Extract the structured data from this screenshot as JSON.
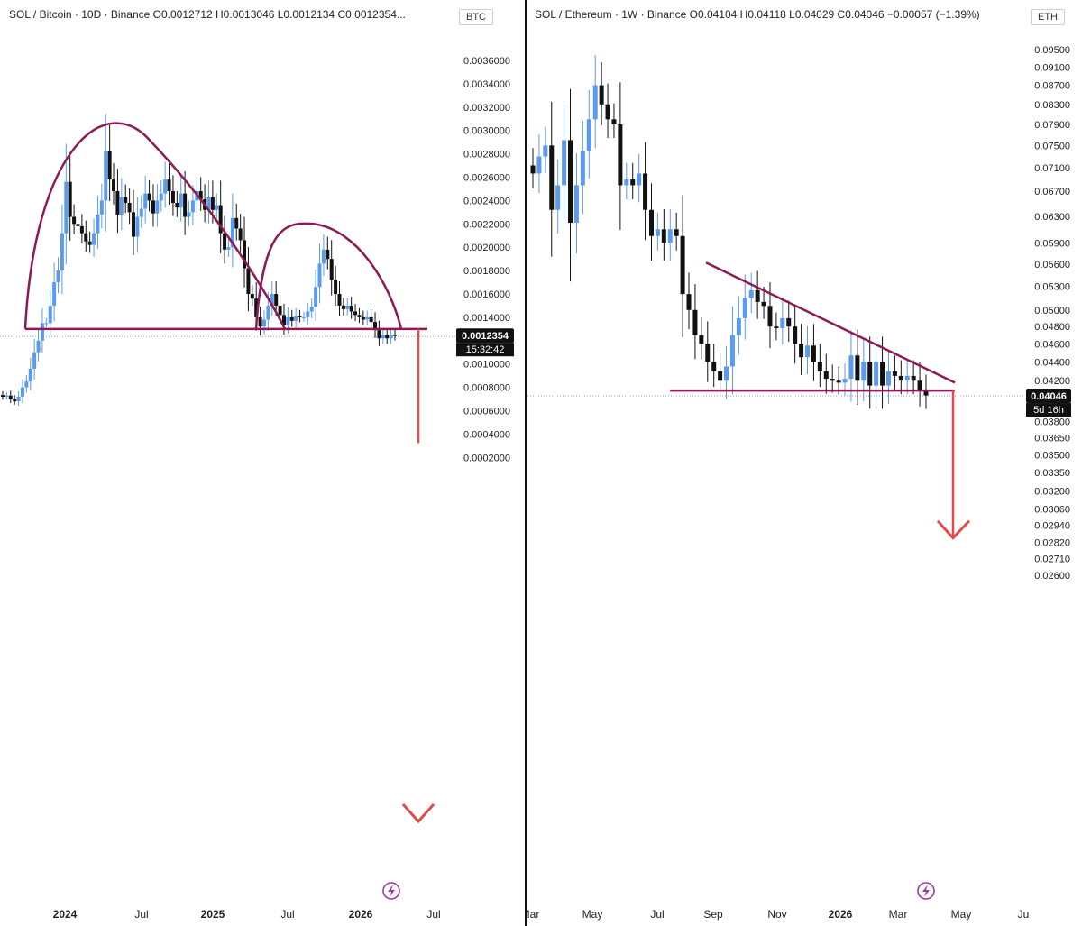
{
  "colors": {
    "up": "#5b9bef",
    "down": "#111111",
    "pattern": "#8e1a55",
    "projection_arrow": "#e44a4a",
    "axis_text": "#222222",
    "price_tag_bg": "#111111",
    "price_tag_text": "#ffffff"
  },
  "left_chart": {
    "header": "SOL / Bitcoin · 10D · Binance  O0.0012712  H0.0013046  L0.0012134  C0.0012354...",
    "currency": "BTC",
    "price_tag": "0.0012354",
    "countdown_tag": "15:32:42",
    "lightning_icon": "lightning-icon"
  },
  "right_chart": {
    "header": "SOL / Ethereum · 1W · Binance  O0.04104  H0.04118  L0.04029  C0.04046  −0.00057 (−1.39%)",
    "currency": "ETH",
    "price_tag": "0.04046",
    "countdown_tag": "5d 16h",
    "lightning_icon": "lightning-icon"
  },
  "chart_data": [
    {
      "type": "candlestick",
      "title": "SOL / Bitcoin · 10D · Binance",
      "ylabel": "BTC",
      "ylim": [
        0.0001,
        0.0038
      ],
      "y_ticks": [
        "0.0036000",
        "0.0034000",
        "0.0032000",
        "0.0030000",
        "0.0028000",
        "0.0026000",
        "0.0024000",
        "0.0022000",
        "0.0020000",
        "0.0018000",
        "0.0016000",
        "0.0014000",
        "0.0010000",
        "0.0008000",
        "0.0006000",
        "0.0004000",
        "0.0002000"
      ],
      "x_ticks": [
        "2024",
        "Jul",
        "2025",
        "Jul",
        "2026",
        "Jul"
      ],
      "annotations": [
        "double-top arcs",
        "neckline at 0.00130",
        "downward projection arrow to 0.00040"
      ],
      "series": [
        {
          "name": "SOL/BTC",
          "close": [
            0.00072,
            0.00073,
            0.0007,
            0.00068,
            0.00072,
            0.0008,
            0.00085,
            0.00096,
            0.0011,
            0.0012,
            0.00135,
            0.00135,
            0.0015,
            0.0017,
            0.0018,
            0.00212,
            0.00256,
            0.00226,
            0.0022,
            0.00218,
            0.00212,
            0.00205,
            0.00202,
            0.00212,
            0.00228,
            0.0024,
            0.00282,
            0.00258,
            0.00248,
            0.00228,
            0.00243,
            0.00238,
            0.0023,
            0.00209,
            0.00226,
            0.00233,
            0.00246,
            0.0024,
            0.00229,
            0.0024,
            0.00246,
            0.00258,
            0.00248,
            0.00238,
            0.00234,
            0.00246,
            0.00226,
            0.0023,
            0.0024,
            0.00248,
            0.00241,
            0.00232,
            0.00243,
            0.00232,
            0.00236,
            0.00212,
            0.00198,
            0.002,
            0.00225,
            0.00216,
            0.00206,
            0.00182,
            0.0016,
            0.00156,
            0.0014,
            0.00132,
            0.00138,
            0.0015,
            0.0016,
            0.0015,
            0.00142,
            0.00133,
            0.0014,
            0.00137,
            0.00141,
            0.0014,
            0.0014,
            0.00145,
            0.00149,
            0.00166,
            0.00186,
            0.00198,
            0.0019,
            0.00172,
            0.0016,
            0.0015,
            0.00147,
            0.0015,
            0.00145,
            0.00142,
            0.0014,
            0.00138,
            0.0014,
            0.00136,
            0.00129,
            0.00122,
            0.00125,
            0.00122,
            0.00125,
            0.00124
          ]
        }
      ]
    },
    {
      "type": "candlestick",
      "title": "SOL / Ethereum · 1W · Binance",
      "ylabel": "ETH",
      "ylim": [
        0.0255,
        0.099
      ],
      "y_scale": "log",
      "y_ticks": [
        "0.09500",
        "0.09100",
        "0.08700",
        "0.08300",
        "0.07900",
        "0.07500",
        "0.07100",
        "0.06700",
        "0.06300",
        "0.05900",
        "0.05600",
        "0.05300",
        "0.05000",
        "0.04800",
        "0.04600",
        "0.04400",
        "0.04200",
        "0.03800",
        "0.03650",
        "0.03500",
        "0.03350",
        "0.03200",
        "0.03060",
        "0.02940",
        "0.02820",
        "0.02710",
        "0.02600"
      ],
      "x_ticks": [
        "Mar",
        "May",
        "Jul",
        "Sep",
        "Nov",
        "2026",
        "Mar",
        "May",
        "Ju"
      ],
      "annotations": [
        "descending triangle upper trendline",
        "support line at 0.0410",
        "downward projection arrow to 0.0285"
      ],
      "series": [
        {
          "name": "SOL/ETH",
          "close": [
            0.07,
            0.073,
            0.075,
            0.064,
            0.068,
            0.076,
            0.062,
            0.068,
            0.074,
            0.08,
            0.087,
            0.083,
            0.08,
            0.079,
            0.068,
            0.069,
            0.068,
            0.07,
            0.064,
            0.06,
            0.061,
            0.059,
            0.061,
            0.06,
            0.052,
            0.05,
            0.047,
            0.046,
            0.044,
            0.043,
            0.042,
            0.0435,
            0.047,
            0.049,
            0.0515,
            0.0525,
            0.051,
            0.0505,
            0.048,
            0.0478,
            0.049,
            0.048,
            0.046,
            0.0445,
            0.0458,
            0.044,
            0.043,
            0.0422,
            0.042,
            0.0418,
            0.0422,
            0.0447,
            0.042,
            0.044,
            0.0415,
            0.044,
            0.0415,
            0.043,
            0.0425,
            0.042,
            0.0425,
            0.042,
            0.041,
            0.0405
          ]
        }
      ]
    }
  ]
}
